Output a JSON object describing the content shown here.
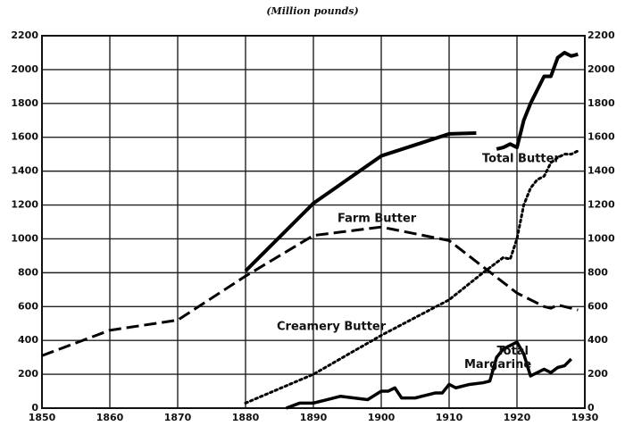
{
  "chart_data": {
    "type": "line",
    "subtitle": "(Million pounds)",
    "xlim": [
      1850,
      1930
    ],
    "xticks": [
      1850,
      1860,
      1870,
      1880,
      1890,
      1900,
      1910,
      1920,
      1930
    ],
    "ylim": [
      0,
      2200
    ],
    "yticks": [
      0,
      200,
      400,
      600,
      800,
      1000,
      1200,
      1400,
      1600,
      1800,
      2000,
      2200
    ],
    "grid": true,
    "series": [
      {
        "name": "Total Butter",
        "color": "#000000",
        "style": "solid",
        "x": [
          1880,
          1890,
          1900,
          1910,
          1914,
          1915,
          1917,
          1918,
          1919,
          1920,
          1921,
          1922,
          1923,
          1924,
          1925,
          1926,
          1927,
          1928,
          1929
        ],
        "values": [
          810,
          1210,
          1490,
          1620,
          1625,
          null,
          1530,
          1540,
          1560,
          1540,
          1700,
          1800,
          1880,
          1960,
          1960,
          2070,
          2100,
          2080,
          2090
        ]
      },
      {
        "name": "Farm Butter",
        "color": "#000000",
        "style": "dashed",
        "x": [
          1850,
          1860,
          1870,
          1880,
          1890,
          1900,
          1910,
          1920,
          1924,
          1925,
          1926,
          1927,
          1928,
          1929
        ],
        "values": [
          310,
          460,
          520,
          780,
          1020,
          1070,
          990,
          680,
          600,
          590,
          610,
          600,
          590,
          580
        ]
      },
      {
        "name": "Creamery Butter",
        "color": "#000000",
        "style": "dotted",
        "x": [
          1880,
          1890,
          1900,
          1910,
          1915,
          1918,
          1919,
          1920,
          1921,
          1922,
          1923,
          1924,
          1925,
          1926,
          1927,
          1928,
          1929
        ],
        "values": [
          30,
          200,
          430,
          640,
          800,
          890,
          880,
          1000,
          1200,
          1300,
          1350,
          1370,
          1450,
          1480,
          1500,
          1500,
          1520
        ]
      },
      {
        "name": "Total Margarine",
        "color": "#000000",
        "style": "solid",
        "x": [
          1886,
          1888,
          1890,
          1892,
          1894,
          1896,
          1898,
          1900,
          1901,
          1902,
          1903,
          1905,
          1906,
          1908,
          1909,
          1910,
          1911,
          1913,
          1915,
          1916,
          1917,
          1918,
          1920,
          1921,
          1922,
          1924,
          1925,
          1926,
          1927,
          1928
        ],
        "values": [
          0,
          30,
          30,
          50,
          70,
          60,
          50,
          100,
          100,
          120,
          60,
          60,
          70,
          90,
          90,
          140,
          120,
          140,
          150,
          160,
          300,
          350,
          390,
          320,
          190,
          230,
          210,
          240,
          250,
          290
        ]
      }
    ]
  }
}
